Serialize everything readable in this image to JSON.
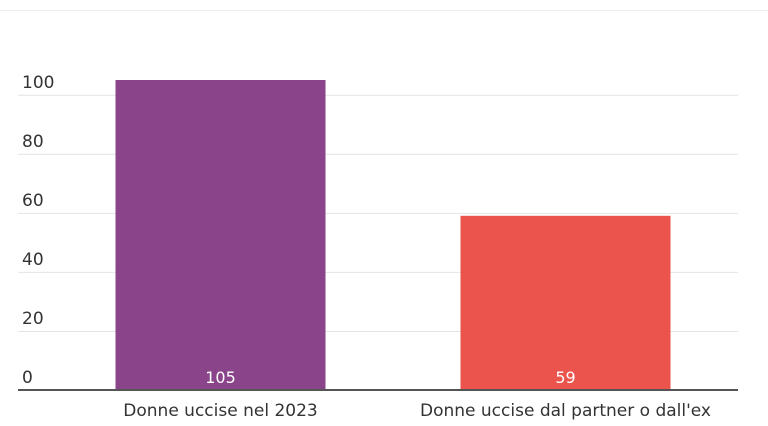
{
  "chart_data": {
    "type": "bar",
    "categories": [
      "Donne uccise nel 2023",
      "Donne uccise dal partner o dall'ex"
    ],
    "values": [
      105,
      59
    ],
    "value_labels": [
      "105",
      "59"
    ],
    "colors": [
      "#8a4489",
      "#eb534d"
    ],
    "yticks": [
      "0",
      "20",
      "40",
      "60",
      "80",
      "100"
    ],
    "ytick_values": [
      0,
      20,
      40,
      60,
      80,
      100
    ],
    "ylim": [
      0,
      105
    ],
    "grid": true,
    "title": "",
    "xlabel": "",
    "ylabel": ""
  }
}
